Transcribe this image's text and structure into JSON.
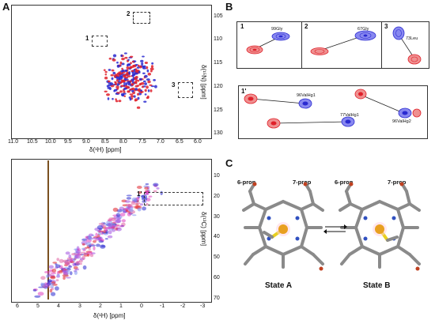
{
  "panels": {
    "a_label": "A",
    "b_label": "B",
    "c_label": "C"
  },
  "spectrum_top": {
    "x_ticks": [
      "11.0",
      "10.5",
      "10.0",
      "9.5",
      "9.0",
      "8.5",
      "8.0",
      "7.5",
      "7.0",
      "6.5",
      "6.0"
    ],
    "y_ticks": [
      "105",
      "110",
      "115",
      "120",
      "125",
      "130"
    ],
    "x_title": "δ(¹H) [ppm]",
    "y_title": "δ(¹⁵N) [ppm]",
    "box_labels": [
      "1",
      "2",
      "3"
    ]
  },
  "spectrum_bottom": {
    "x_ticks": [
      "6",
      "5",
      "4",
      "3",
      "2",
      "1",
      "0",
      "-1",
      "-2",
      "-3"
    ],
    "y_ticks": [
      "10",
      "20",
      "30",
      "40",
      "50",
      "60",
      "70"
    ],
    "x_title": "δ(¹H) [ppm]",
    "y_title": "δ(¹³C) [ppm]",
    "box_label": "1'"
  },
  "zooms": [
    {
      "num": "1",
      "peak": "99Gly"
    },
    {
      "num": "2",
      "peak": "67Gly"
    },
    {
      "num": "3",
      "peak": "73Leu"
    }
  ],
  "zoom_methyl": {
    "num": "1'",
    "peaks": [
      "96ValHg1",
      "77ValHg1",
      "96ValHg2"
    ]
  },
  "structures": {
    "prop6": "6-prop",
    "prop7": "7-prop",
    "state_a": "State A",
    "state_b": "State B"
  },
  "colors": {
    "state_red": "#e0202a",
    "state_blue": "#2a2ad0",
    "sulfur": "#e8d020",
    "iron": "#e8a020",
    "carbon": "#8a8a8a",
    "nitrogen": "#3050c0",
    "oxygen": "#c04020"
  }
}
